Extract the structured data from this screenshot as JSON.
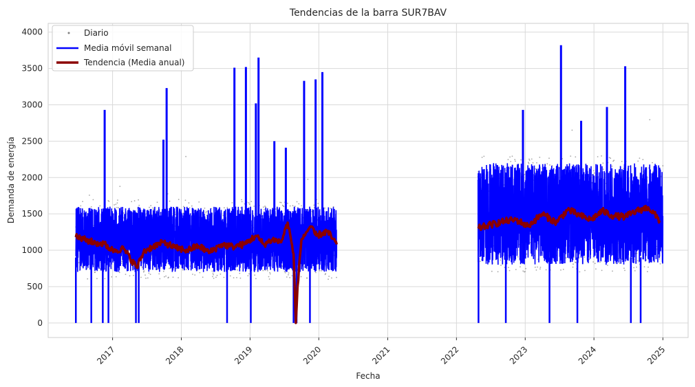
{
  "chart_data": {
    "type": "line",
    "title": "Tendencias de la barra SUR7BAV",
    "xlabel": "Fecha",
    "ylabel": "Demanda de energía",
    "xlim": [
      "2016-01-25",
      "2025-05-15"
    ],
    "ylim": [
      -200,
      4120
    ],
    "x_ticks": [
      "2017",
      "2018",
      "2019",
      "2020",
      "2021",
      "2022",
      "2023",
      "2024",
      "2025"
    ],
    "y_ticks": [
      0,
      500,
      1000,
      1500,
      2000,
      2500,
      3000,
      3500,
      4000
    ],
    "grid": true,
    "legend_position": "top-left",
    "colors": {
      "daily": "#808080",
      "weekly": "#0000ff",
      "annual": "#8b0000",
      "grid": "#d9d9d9"
    },
    "series": [
      {
        "name": "Diario",
        "style": "points",
        "segments": [
          {
            "start": "2016-06-20",
            "end": "2020-04-05",
            "typical_range": [
              600,
              1700
            ]
          },
          {
            "start": "2022-04-25",
            "end": "2025-01-01",
            "typical_range": [
              700,
              2300
            ]
          }
        ]
      },
      {
        "name": "Media móvil semanal",
        "style": "line",
        "segments": [
          {
            "start": "2016-06-20",
            "end": "2020-04-05",
            "typical_range": [
              700,
              1600
            ]
          },
          {
            "start": "2022-04-25",
            "end": "2025-01-01",
            "typical_range": [
              800,
              2200
            ]
          }
        ],
        "spikes": [
          {
            "x": "2016-11-20",
            "y": 2930
          },
          {
            "x": "2017-10-15",
            "y": 3230
          },
          {
            "x": "2017-09-28",
            "y": 2520
          },
          {
            "x": "2018-10-10",
            "y": 3510
          },
          {
            "x": "2018-12-10",
            "y": 3520
          },
          {
            "x": "2019-02-15",
            "y": 3650
          },
          {
            "x": "2019-02-01",
            "y": 3020
          },
          {
            "x": "2019-05-10",
            "y": 2500
          },
          {
            "x": "2019-07-10",
            "y": 2410
          },
          {
            "x": "2019-10-15",
            "y": 3330
          },
          {
            "x": "2019-12-15",
            "y": 3350
          },
          {
            "x": "2020-01-20",
            "y": 3450
          },
          {
            "x": "2022-12-20",
            "y": 2930
          },
          {
            "x": "2023-07-10",
            "y": 3820
          },
          {
            "x": "2023-10-25",
            "y": 2780
          },
          {
            "x": "2024-03-10",
            "y": 2970
          },
          {
            "x": "2024-06-15",
            "y": 3530
          }
        ],
        "dips": [
          {
            "x": "2016-06-20",
            "y": 0
          },
          {
            "x": "2016-09-10",
            "y": 0
          },
          {
            "x": "2016-11-10",
            "y": 0
          },
          {
            "x": "2016-12-10",
            "y": 0
          },
          {
            "x": "2017-05-05",
            "y": 0
          },
          {
            "x": "2017-05-20",
            "y": 0
          },
          {
            "x": "2018-09-01",
            "y": 0
          },
          {
            "x": "2019-01-05",
            "y": 0
          },
          {
            "x": "2019-08-20",
            "y": 0
          },
          {
            "x": "2019-09-05",
            "y": 0
          },
          {
            "x": "2019-11-15",
            "y": 0
          },
          {
            "x": "2022-04-28",
            "y": 0
          },
          {
            "x": "2022-09-20",
            "y": 0
          },
          {
            "x": "2023-05-10",
            "y": 0
          },
          {
            "x": "2023-10-05",
            "y": 0
          },
          {
            "x": "2024-07-15",
            "y": 0
          },
          {
            "x": "2024-09-05",
            "y": 0
          }
        ]
      },
      {
        "name": "Tendencia (Media anual)",
        "style": "line",
        "points": [
          [
            "2016-06-20",
            1180
          ],
          [
            "2016-08-01",
            1150
          ],
          [
            "2016-10-01",
            1100
          ],
          [
            "2016-11-15",
            1090
          ],
          [
            "2017-01-01",
            1000
          ],
          [
            "2017-03-01",
            1020
          ],
          [
            "2017-05-10",
            760
          ],
          [
            "2017-06-15",
            980
          ],
          [
            "2017-08-01",
            1050
          ],
          [
            "2017-10-01",
            1110
          ],
          [
            "2017-12-01",
            1030
          ],
          [
            "2018-02-01",
            1000
          ],
          [
            "2018-04-01",
            1060
          ],
          [
            "2018-06-01",
            970
          ],
          [
            "2018-08-01",
            1080
          ],
          [
            "2018-10-01",
            1050
          ],
          [
            "2018-12-01",
            1080
          ],
          [
            "2019-02-01",
            1200
          ],
          [
            "2019-03-15",
            1080
          ],
          [
            "2019-05-01",
            1150
          ],
          [
            "2019-06-15",
            1110
          ],
          [
            "2019-07-20",
            1380
          ],
          [
            "2019-08-20",
            950
          ],
          [
            "2019-09-01",
            0
          ],
          [
            "2019-09-10",
            500
          ],
          [
            "2019-10-01",
            1150
          ],
          [
            "2019-11-15",
            1320
          ],
          [
            "2019-12-20",
            1200
          ],
          [
            "2020-02-15",
            1260
          ],
          [
            "2020-04-05",
            1080
          ],
          [
            "2022-04-25",
            1300
          ],
          [
            "2022-07-01",
            1350
          ],
          [
            "2022-09-15",
            1400
          ],
          [
            "2022-11-15",
            1420
          ],
          [
            "2023-01-15",
            1330
          ],
          [
            "2023-04-01",
            1500
          ],
          [
            "2023-06-15",
            1380
          ],
          [
            "2023-08-15",
            1560
          ],
          [
            "2023-10-15",
            1480
          ],
          [
            "2023-12-15",
            1420
          ],
          [
            "2024-02-15",
            1540
          ],
          [
            "2024-04-15",
            1470
          ],
          [
            "2024-06-15",
            1460
          ],
          [
            "2024-08-15",
            1540
          ],
          [
            "2024-10-15",
            1590
          ],
          [
            "2024-12-15",
            1410
          ]
        ]
      }
    ]
  }
}
